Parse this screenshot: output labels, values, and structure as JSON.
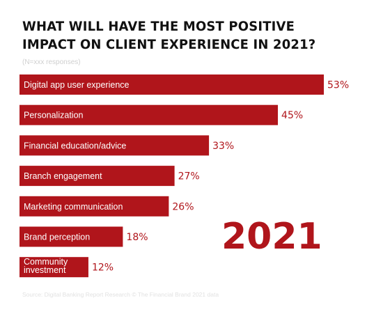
{
  "colors": {
    "bar": "#b0151b",
    "title": "#111111",
    "year": "#b0151b"
  },
  "chart_data": {
    "type": "bar",
    "orientation": "horizontal",
    "title": "WHAT WILL HAVE THE MOST POSITIVE IMPACT ON CLIENT EXPERIENCE IN 2021?",
    "subtitle": "(N=xxx responses)",
    "categories": [
      "Digital app user experience",
      "Personalization",
      "Financial education/advice",
      "Branch engagement",
      "Marketing communication",
      "Brand perception",
      "Community investment"
    ],
    "values": [
      53,
      45,
      33,
      27,
      26,
      18,
      12
    ],
    "value_suffix": "%",
    "xlim": [
      0,
      60
    ],
    "grid": false,
    "legend": "none",
    "annotation": "2021",
    "footnote": "Source: Digital Banking Report Research © The Financial Brand 2021 data"
  }
}
